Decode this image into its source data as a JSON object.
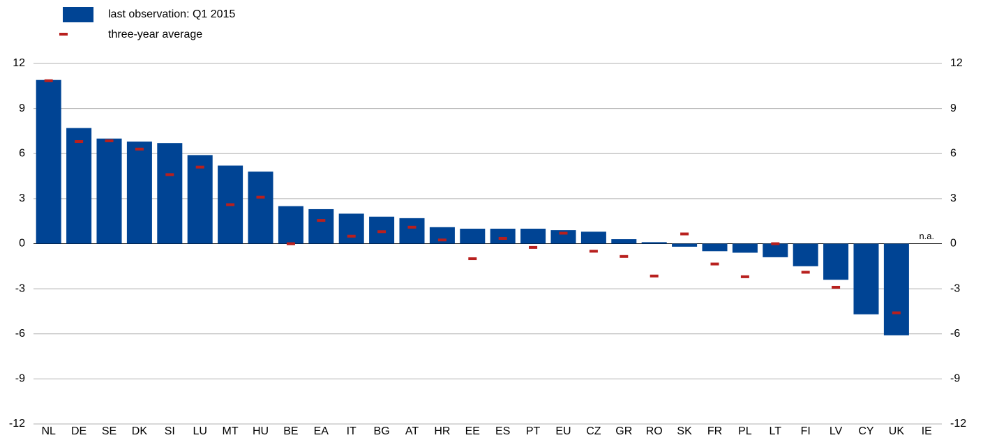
{
  "chart_data": {
    "type": "bar",
    "categories": [
      "NL",
      "DE",
      "SE",
      "DK",
      "SI",
      "LU",
      "MT",
      "HU",
      "BE",
      "EA",
      "IT",
      "BG",
      "AT",
      "HR",
      "EE",
      "ES",
      "PT",
      "EU",
      "CZ",
      "GR",
      "RO",
      "SK",
      "FR",
      "PL",
      "LT",
      "FI",
      "LV",
      "CY",
      "UK",
      "IE"
    ],
    "series": [
      {
        "name": "last observation: Q1 2015",
        "color": "#004494",
        "kind": "bar",
        "values": [
          10.9,
          7.7,
          7.0,
          6.8,
          6.7,
          5.9,
          5.2,
          4.8,
          2.5,
          2.3,
          2.0,
          1.8,
          1.7,
          1.1,
          1.0,
          1.0,
          1.0,
          0.9,
          0.8,
          0.3,
          0.1,
          -0.2,
          -0.5,
          -0.6,
          -0.9,
          -1.5,
          -2.4,
          -4.7,
          -6.1,
          null
        ]
      },
      {
        "name": "three-year average",
        "color": "#b8201e",
        "kind": "marker",
        "values": [
          10.85,
          6.8,
          6.85,
          6.3,
          4.6,
          5.1,
          2.6,
          3.1,
          0,
          1.55,
          0.5,
          0.8,
          1.1,
          0.25,
          -1.0,
          0.35,
          -0.25,
          0.7,
          -0.5,
          -0.85,
          -2.15,
          0.65,
          -1.35,
          -2.2,
          0,
          -1.9,
          -2.9,
          null,
          -4.6,
          null
        ]
      }
    ],
    "annotation": "n.a.",
    "ylim": [
      -12,
      12
    ],
    "yticks": [
      -12,
      -9,
      -6,
      -3,
      0,
      3,
      6,
      9,
      12
    ],
    "y2lim": [
      -12,
      12
    ],
    "y2ticks": [
      -12,
      -9,
      -6,
      -3,
      0,
      3,
      6,
      9,
      12
    ],
    "grid": true
  }
}
